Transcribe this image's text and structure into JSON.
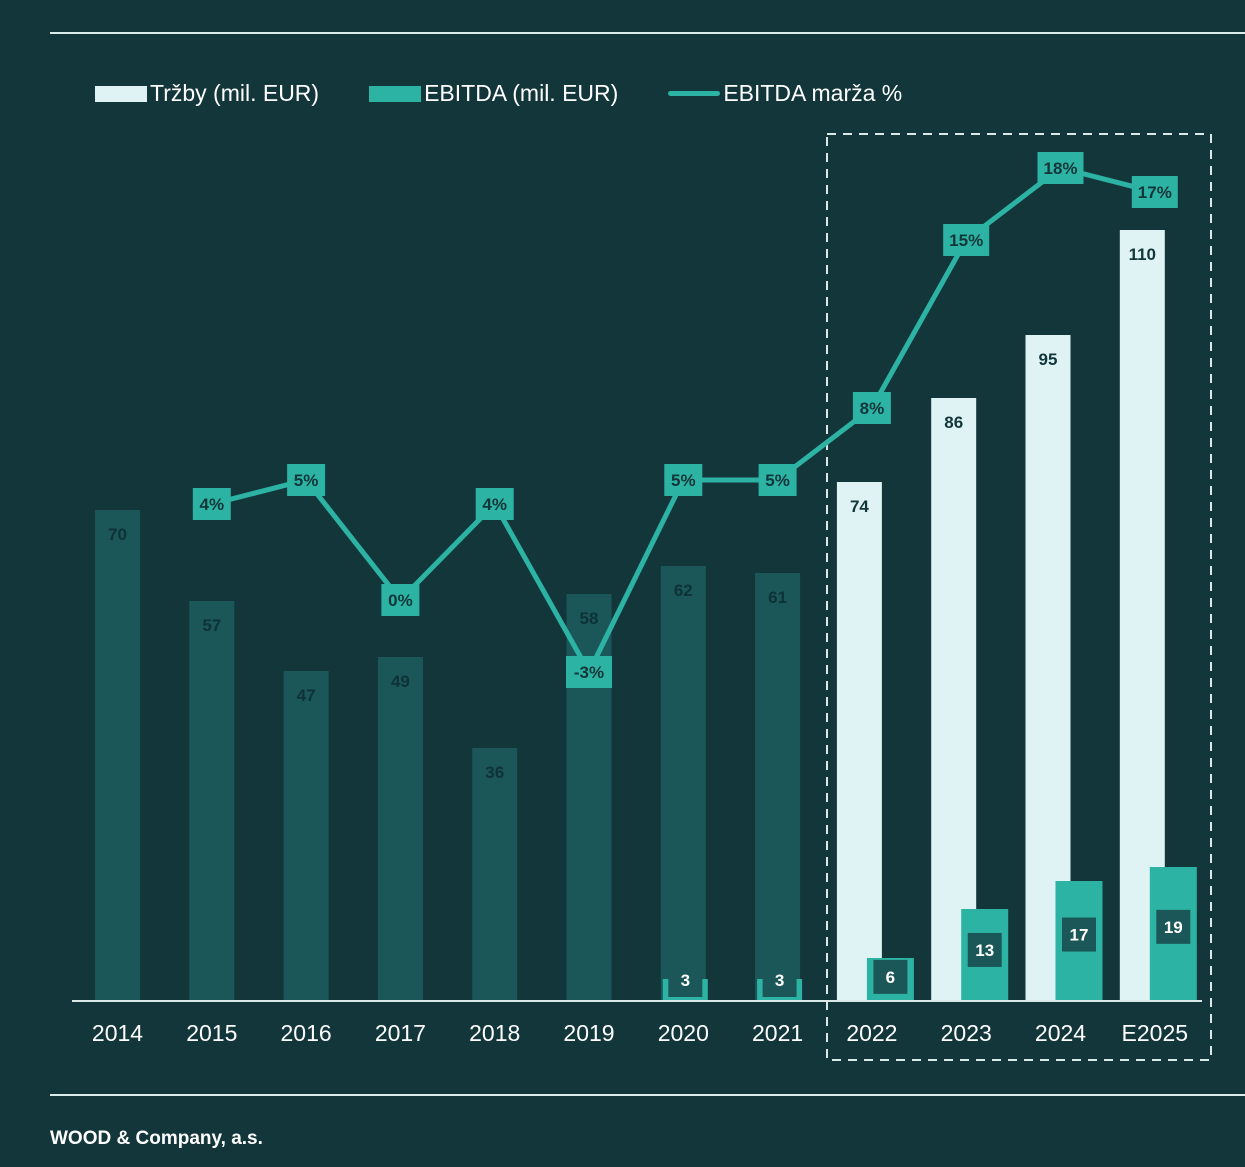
{
  "colors": {
    "background": "#12363a",
    "historic_bar": "#1b5759",
    "historic_label": "#0e3235",
    "forecast_bar": "#dff3f4",
    "ebitda_bar": "#2db3a3",
    "ebitda_label_box": "#1b5759",
    "line": "#2db3a3",
    "axis": "#dbe8e8",
    "white": "#ffffff",
    "dark_text": "#12363a"
  },
  "legend": {
    "revenue": "Tržby (mil. EUR)",
    "ebitda": "EBITDA (mil. EUR)",
    "margin": "EBITDA marža %"
  },
  "footer": {
    "company": "WOOD & Company, a.s."
  },
  "chart_data": {
    "type": "bar",
    "categories": [
      "2014",
      "2015",
      "2016",
      "2017",
      "2018",
      "2019",
      "2020",
      "2021",
      "2022",
      "2023",
      "2024",
      "E2025"
    ],
    "forecast_start_index": 8,
    "forecast_box": "dashed box around 2022–E2025",
    "series": [
      {
        "name": "Tržby (mil. EUR)",
        "type": "bar",
        "values": [
          70,
          57,
          47,
          49,
          36,
          58,
          62,
          61,
          74,
          86,
          95,
          110
        ],
        "labels": [
          "70",
          "57",
          "47",
          "49",
          "36",
          "58",
          "62",
          "61",
          "74",
          "86",
          "95",
          "110"
        ]
      },
      {
        "name": "EBITDA (mil. EUR)",
        "type": "bar",
        "values": [
          null,
          null,
          null,
          null,
          null,
          null,
          3,
          3,
          6,
          13,
          17,
          19
        ],
        "labels": [
          "",
          "",
          "",
          "",
          "",
          "",
          "3",
          "3",
          "6",
          "13",
          "17",
          "19"
        ]
      },
      {
        "name": "EBITDA marža %",
        "type": "line",
        "values": [
          null,
          4,
          5,
          0,
          4,
          -3,
          5,
          5,
          8,
          15,
          18,
          17
        ],
        "labels": [
          "",
          "4%",
          "5%",
          "0%",
          "4%",
          "-3%",
          "5%",
          "5%",
          "8%",
          "15%",
          "18%",
          "17%"
        ]
      }
    ],
    "xlabel": "",
    "ylabel": "",
    "legend_position": "top-left"
  }
}
